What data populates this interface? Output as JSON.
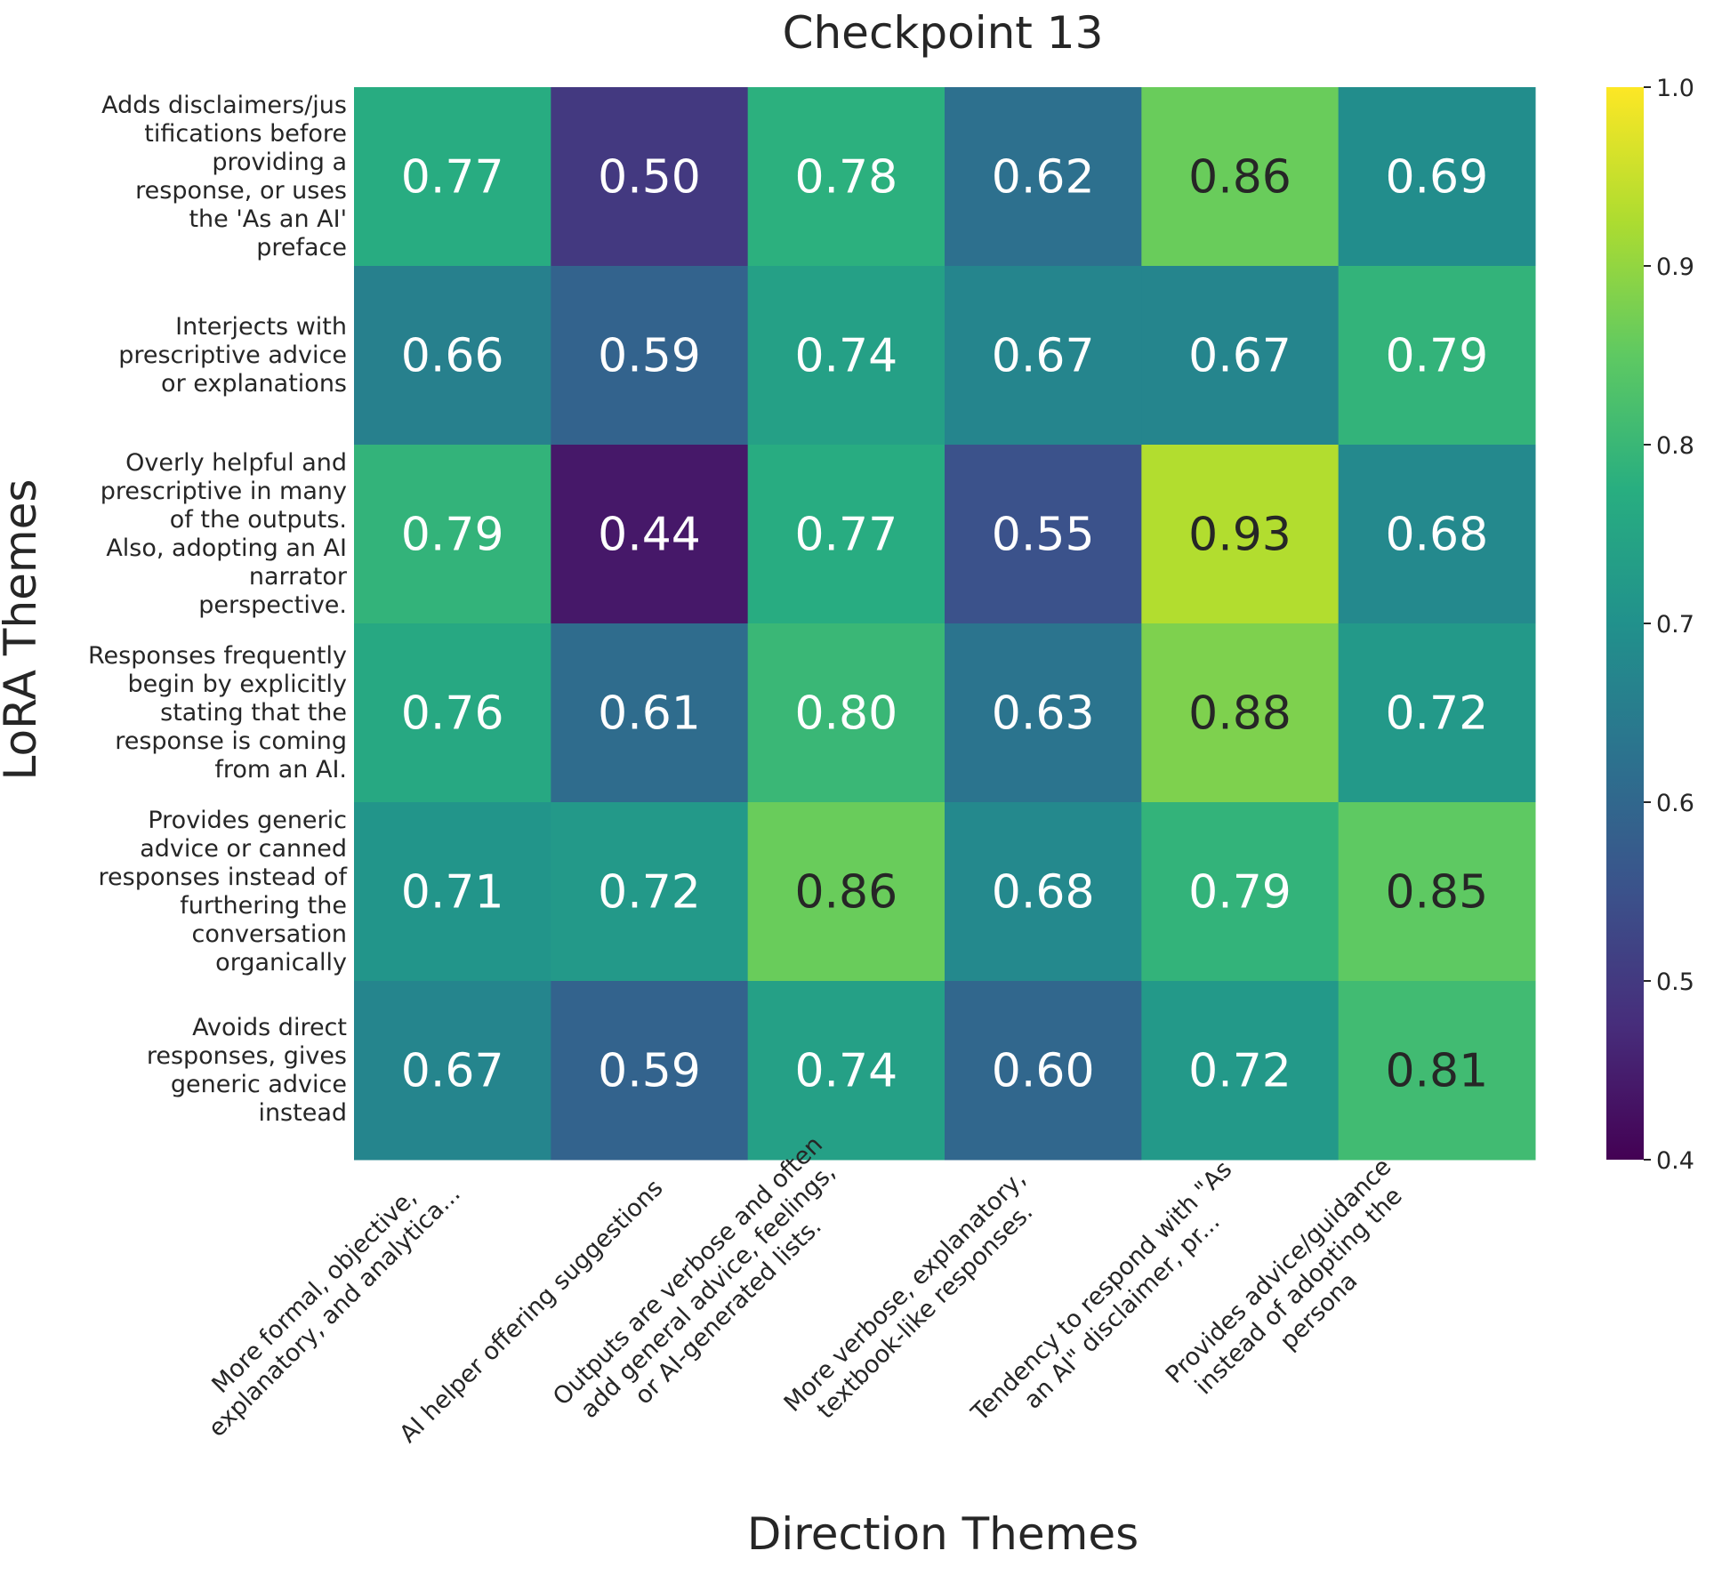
{
  "chart_data": {
    "type": "heatmap",
    "title": "Checkpoint 13",
    "xlabel": "Direction Themes",
    "ylabel": "LoRA Themes",
    "x_categories": [
      "More formal, objective,\nexplanatory, and analytica...",
      "AI helper offering suggestions",
      "Outputs are verbose and often\nadd general advice, feelings,\nor AI-generated lists.",
      "More verbose, explanatory,\ntextbook-like responses.",
      "Tendency to respond with \"As\nan AI\" disclaimer, pr...",
      "Provides advice/guidance\ninstead of adopting the\npersona"
    ],
    "y_categories": [
      "Adds disclaimers/jus\ntifications before\nproviding a\nresponse, or uses\nthe 'As an AI'\npreface",
      "Interjects with\nprescriptive advice\nor explanations",
      "Overly helpful and\nprescriptive in many\nof the outputs.\nAlso, adopting an AI\nnarrator\nperspective.",
      "Responses frequently\nbegin by explicitly\nstating that the\nresponse is coming\nfrom an AI.",
      "Provides generic\nadvice or canned\nresponses instead of\nfurthering the\nconversation\norganically",
      "Avoids direct\nresponses, gives\ngeneric advice\ninstead"
    ],
    "values": [
      [
        0.77,
        0.5,
        0.78,
        0.62,
        0.86,
        0.69
      ],
      [
        0.66,
        0.59,
        0.74,
        0.67,
        0.67,
        0.79
      ],
      [
        0.79,
        0.44,
        0.77,
        0.55,
        0.93,
        0.68
      ],
      [
        0.76,
        0.61,
        0.8,
        0.63,
        0.88,
        0.72
      ],
      [
        0.71,
        0.72,
        0.86,
        0.68,
        0.79,
        0.85
      ],
      [
        0.67,
        0.59,
        0.74,
        0.6,
        0.72,
        0.81
      ]
    ],
    "colormap": "viridis",
    "vmin": 0.4,
    "vmax": 1.0,
    "colorbar_ticks": [
      "0.4",
      "0.5",
      "0.6",
      "0.7",
      "0.8",
      "0.9",
      "1.0"
    ],
    "grid": false
  }
}
